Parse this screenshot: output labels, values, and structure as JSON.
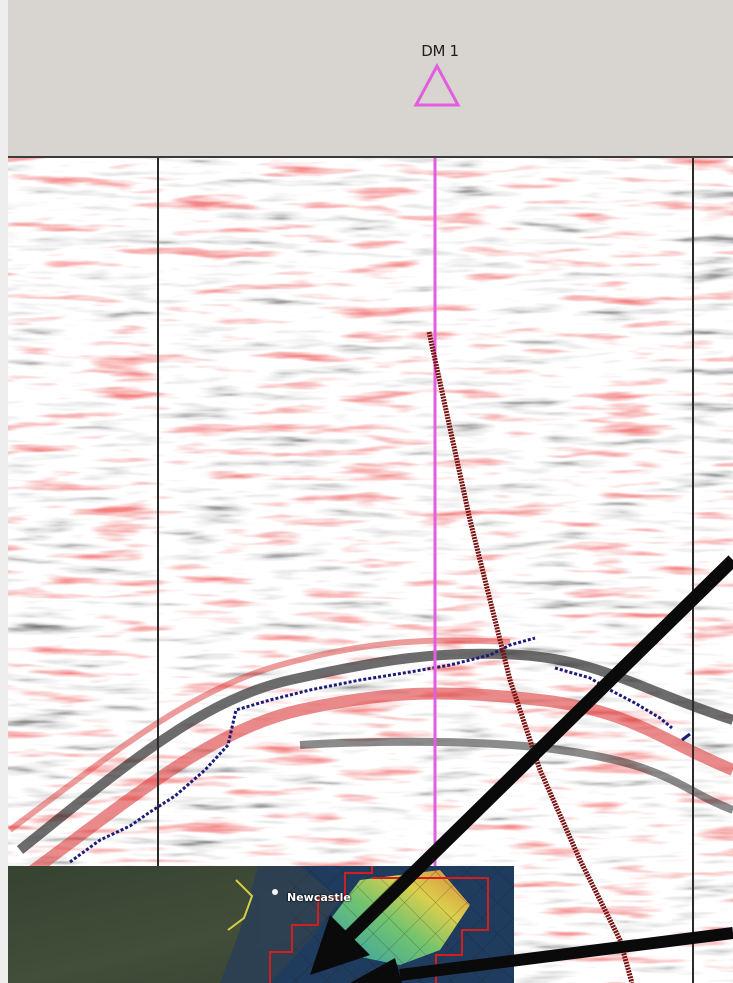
{
  "well": {
    "name": "DM 1",
    "marker_color": "#e25ee0"
  },
  "section": {
    "trace_line_color": "#e25ee0",
    "fault_color": "#7a1212",
    "horizon_color": "#1c1c78",
    "positive_amplitude_color": "#e23838",
    "negative_amplitude_color": "#1a1a1a"
  },
  "map_inset": {
    "city_label": "Newcastle",
    "outline_color": "#d21e1e"
  },
  "icons": {
    "well_marker": "triangle-outline-icon",
    "pointer_arrows": "arrow-icon"
  }
}
